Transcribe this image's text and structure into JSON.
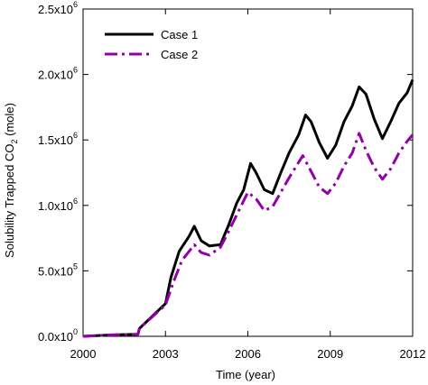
{
  "chart_data": {
    "type": "line",
    "xlabel": "Time (year)",
    "ylabel_parts": {
      "prefix": "Solubility Trapped CO",
      "sub": "2",
      "suffix": " (mole)"
    },
    "xlim": [
      2000,
      2012
    ],
    "ylim": [
      0,
      2500000
    ],
    "x_ticks": [
      2000,
      2003,
      2006,
      2009,
      2012
    ],
    "x_tick_labels": [
      "2000",
      "2003",
      "2006",
      "2009",
      "2012"
    ],
    "y_ticks": [
      0,
      500000,
      1000000,
      1500000,
      2000000,
      2500000
    ],
    "y_tick_labels": [
      {
        "mant": "0.0x10",
        "exp": "0"
      },
      {
        "mant": "5.0x10",
        "exp": "5"
      },
      {
        "mant": "1.0x10",
        "exp": "6"
      },
      {
        "mant": "1.5x10",
        "exp": "6"
      },
      {
        "mant": "2.0x10",
        "exp": "6"
      },
      {
        "mant": "2.5x10",
        "exp": "6"
      }
    ],
    "grid": false,
    "legend_position": "top-left",
    "series": [
      {
        "name": "Case 1",
        "color": "#000000",
        "style": "solid",
        "points": [
          [
            2000,
            0
          ],
          [
            2001,
            10000
          ],
          [
            2002,
            15000
          ],
          [
            2002.05,
            60000
          ],
          [
            2003,
            250000
          ],
          [
            2003.2,
            450000
          ],
          [
            2003.5,
            650000
          ],
          [
            2003.85,
            760000
          ],
          [
            2004.05,
            840000
          ],
          [
            2004.3,
            730000
          ],
          [
            2004.6,
            690000
          ],
          [
            2005.0,
            700000
          ],
          [
            2005.3,
            850000
          ],
          [
            2005.6,
            1020000
          ],
          [
            2005.85,
            1120000
          ],
          [
            2006.1,
            1320000
          ],
          [
            2006.3,
            1250000
          ],
          [
            2006.6,
            1120000
          ],
          [
            2006.9,
            1090000
          ],
          [
            2007.2,
            1250000
          ],
          [
            2007.5,
            1400000
          ],
          [
            2007.85,
            1540000
          ],
          [
            2008.1,
            1690000
          ],
          [
            2008.3,
            1640000
          ],
          [
            2008.6,
            1480000
          ],
          [
            2008.9,
            1360000
          ],
          [
            2009.2,
            1460000
          ],
          [
            2009.5,
            1640000
          ],
          [
            2009.8,
            1760000
          ],
          [
            2010.05,
            1905000
          ],
          [
            2010.3,
            1850000
          ],
          [
            2010.6,
            1660000
          ],
          [
            2010.9,
            1510000
          ],
          [
            2011.2,
            1640000
          ],
          [
            2011.5,
            1780000
          ],
          [
            2011.8,
            1860000
          ],
          [
            2012,
            1960000
          ]
        ]
      },
      {
        "name": "Case 2",
        "color": "#9400a8",
        "style": "dashdot",
        "points": [
          [
            2000,
            0
          ],
          [
            2001,
            10000
          ],
          [
            2002,
            15000
          ],
          [
            2002.05,
            60000
          ],
          [
            2003,
            240000
          ],
          [
            2003.3,
            420000
          ],
          [
            2003.6,
            580000
          ],
          [
            2004.05,
            700000
          ],
          [
            2004.3,
            640000
          ],
          [
            2004.6,
            620000
          ],
          [
            2005.0,
            680000
          ],
          [
            2005.3,
            800000
          ],
          [
            2005.6,
            930000
          ],
          [
            2006.0,
            1100000
          ],
          [
            2006.3,
            1050000
          ],
          [
            2006.6,
            960000
          ],
          [
            2006.9,
            990000
          ],
          [
            2007.2,
            1100000
          ],
          [
            2007.5,
            1210000
          ],
          [
            2008.0,
            1380000
          ],
          [
            2008.3,
            1260000
          ],
          [
            2008.6,
            1140000
          ],
          [
            2008.9,
            1090000
          ],
          [
            2009.2,
            1170000
          ],
          [
            2009.5,
            1300000
          ],
          [
            2009.8,
            1400000
          ],
          [
            2010.05,
            1550000
          ],
          [
            2010.3,
            1420000
          ],
          [
            2010.6,
            1290000
          ],
          [
            2010.9,
            1200000
          ],
          [
            2011.2,
            1280000
          ],
          [
            2011.5,
            1400000
          ],
          [
            2011.8,
            1490000
          ],
          [
            2012,
            1540000
          ]
        ]
      }
    ]
  }
}
